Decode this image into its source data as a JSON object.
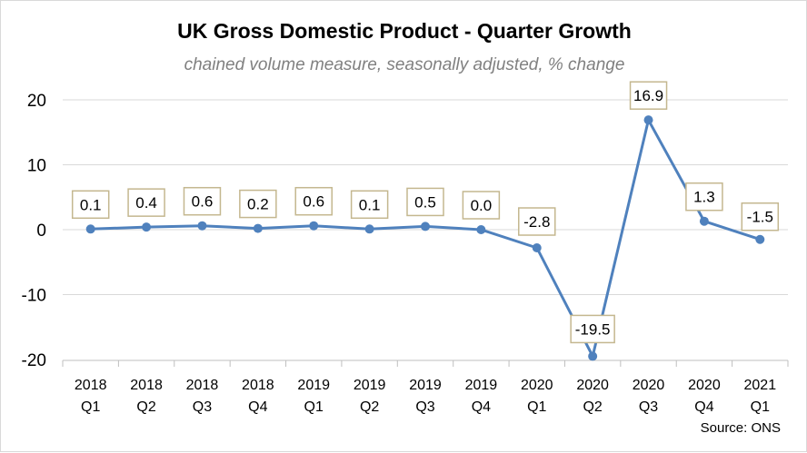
{
  "colors": {
    "line": "#4f81bd",
    "label_border": "#c4b78f",
    "axis": "#bfbfbf",
    "grid": "#d9d9d9"
  },
  "chart_data": {
    "type": "line",
    "title": "UK Gross Domestic Product - Quarter Growth",
    "subtitle": "chained volume measure, seasonally adjusted, % change",
    "source": "Source: ONS",
    "categories": [
      [
        "2018",
        "Q1"
      ],
      [
        "2018",
        "Q2"
      ],
      [
        "2018",
        "Q3"
      ],
      [
        "2018",
        "Q4"
      ],
      [
        "2019",
        "Q1"
      ],
      [
        "2019",
        "Q2"
      ],
      [
        "2019",
        "Q3"
      ],
      [
        "2019",
        "Q4"
      ],
      [
        "2020",
        "Q1"
      ],
      [
        "2020",
        "Q2"
      ],
      [
        "2020",
        "Q3"
      ],
      [
        "2020",
        "Q4"
      ],
      [
        "2021",
        "Q1"
      ]
    ],
    "values": [
      0.1,
      0.4,
      0.6,
      0.2,
      0.6,
      0.1,
      0.5,
      0.0,
      -2.8,
      -19.5,
      16.9,
      1.3,
      -1.5
    ],
    "data_labels": [
      "0.1",
      "0.4",
      "0.6",
      "0.2",
      "0.6",
      "0.1",
      "0.5",
      "0.0",
      "-2.8",
      "-19.5",
      "16.9",
      "1.3",
      "-1.5"
    ],
    "ylim": [
      -20,
      20
    ],
    "yticks": [
      20,
      10,
      0,
      -10,
      -20
    ],
    "ytick_labels": [
      "20",
      "10",
      "0",
      "-10",
      "-20"
    ],
    "grid": true,
    "legend": false
  }
}
